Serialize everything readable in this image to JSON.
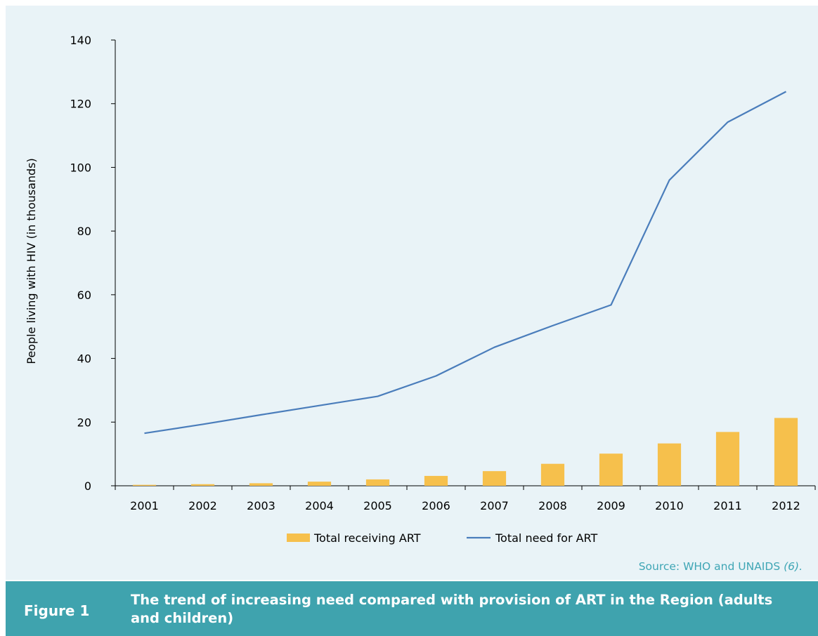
{
  "chart_data": {
    "type": "bar",
    "title": "",
    "xlabel": "",
    "ylabel": "People living with HIV (in thousands)",
    "ylim": [
      0,
      140
    ],
    "yticks": [
      0,
      20,
      40,
      60,
      80,
      100,
      120,
      140
    ],
    "categories": [
      "2001",
      "2002",
      "2003",
      "2004",
      "2005",
      "2006",
      "2007",
      "2008",
      "2009",
      "2010",
      "2011",
      "2012"
    ],
    "series": [
      {
        "name": "Total receiving ART",
        "kind": "bar",
        "color": "#f6c04c",
        "values": [
          0.3,
          0.5,
          0.8,
          1.3,
          2.0,
          3.1,
          4.6,
          6.9,
          10.1,
          13.3,
          16.9,
          21.3
        ]
      },
      {
        "name": "Total need for ART",
        "kind": "line",
        "color": "#4a7dbb",
        "values": [
          16.5,
          19.3,
          22.3,
          25.2,
          28.1,
          34.5,
          43.5,
          50.3,
          56.8,
          96.0,
          114.2,
          123.8
        ]
      }
    ],
    "legend_position": "bottom",
    "grid": false
  },
  "source": {
    "text": "Source: WHO and UNAIDS",
    "ref": "(6)."
  },
  "caption": {
    "label": "Figure 1",
    "text": "The trend of increasing need compared with provision of ART in the Region (adults and children)"
  }
}
